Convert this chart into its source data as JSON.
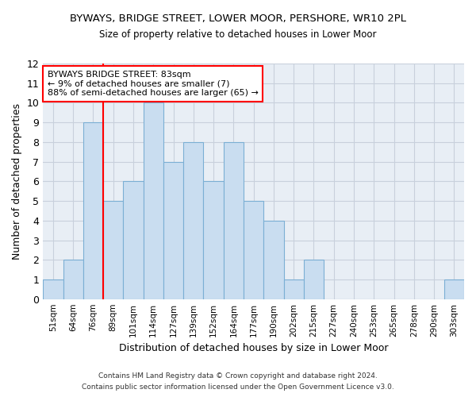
{
  "title_line1": "BYWAYS, BRIDGE STREET, LOWER MOOR, PERSHORE, WR10 2PL",
  "title_line2": "Size of property relative to detached houses in Lower Moor",
  "xlabel": "Distribution of detached houses by size in Lower Moor",
  "ylabel": "Number of detached properties",
  "categories": [
    "51sqm",
    "64sqm",
    "76sqm",
    "89sqm",
    "101sqm",
    "114sqm",
    "127sqm",
    "139sqm",
    "152sqm",
    "164sqm",
    "177sqm",
    "190sqm",
    "202sqm",
    "215sqm",
    "227sqm",
    "240sqm",
    "253sqm",
    "265sqm",
    "278sqm",
    "290sqm",
    "303sqm"
  ],
  "values": [
    1,
    2,
    9,
    5,
    6,
    10,
    7,
    8,
    6,
    8,
    5,
    4,
    1,
    2,
    0,
    0,
    0,
    0,
    0,
    0,
    1
  ],
  "bar_color": "#c9ddf0",
  "bar_edge_color": "#7bafd4",
  "red_line_index": 2.5,
  "annotation_text": "BYWAYS BRIDGE STREET: 83sqm\n← 9% of detached houses are smaller (7)\n88% of semi-detached houses are larger (65) →",
  "annotation_box_color": "white",
  "annotation_box_edge_color": "red",
  "ylim": [
    0,
    12
  ],
  "yticks": [
    0,
    1,
    2,
    3,
    4,
    5,
    6,
    7,
    8,
    9,
    10,
    11,
    12
  ],
  "grid_color": "#c8d0dc",
  "footnote1": "Contains HM Land Registry data © Crown copyright and database right 2024.",
  "footnote2": "Contains public sector information licensed under the Open Government Licence v3.0.",
  "bg_color": "#ffffff",
  "plot_bg_color": "#e8eef5"
}
